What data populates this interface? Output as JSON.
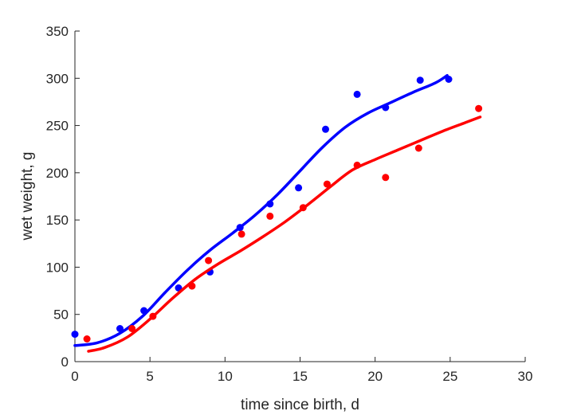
{
  "chart_data": {
    "type": "scatter",
    "title": "",
    "xlabel": "time since birth, d",
    "ylabel": "wet weight, g",
    "xlim": [
      0,
      30
    ],
    "ylim": [
      0,
      350
    ],
    "xticks": [
      0,
      5,
      10,
      15,
      20,
      25,
      30
    ],
    "yticks": [
      0,
      50,
      100,
      150,
      200,
      250,
      300,
      350
    ],
    "grid": false,
    "legend": "none",
    "series": [
      {
        "color": "#0000ff",
        "points": [
          [
            0.0,
            29
          ],
          [
            3.0,
            35
          ],
          [
            4.6,
            54
          ],
          [
            6.9,
            78
          ],
          [
            9.0,
            95
          ],
          [
            11.0,
            142
          ],
          [
            13.0,
            167
          ],
          [
            14.9,
            184
          ],
          [
            16.7,
            246
          ],
          [
            18.8,
            283
          ],
          [
            20.7,
            269
          ],
          [
            23.0,
            298
          ],
          [
            24.9,
            299
          ]
        ],
        "fit": [
          [
            0.0,
            17
          ],
          [
            1.5,
            20
          ],
          [
            3.0,
            30
          ],
          [
            4.5,
            48
          ],
          [
            6.0,
            73
          ],
          [
            7.5,
            97
          ],
          [
            9.0,
            118
          ],
          [
            10.5,
            136
          ],
          [
            12.0,
            155
          ],
          [
            13.5,
            177
          ],
          [
            15.0,
            202
          ],
          [
            16.5,
            227
          ],
          [
            18.0,
            248
          ],
          [
            19.5,
            263
          ],
          [
            21.0,
            274
          ],
          [
            22.5,
            285
          ],
          [
            24.0,
            295
          ],
          [
            24.8,
            303
          ]
        ]
      },
      {
        "color": "#ff0000",
        "points": [
          [
            0.8,
            24
          ],
          [
            3.8,
            35
          ],
          [
            5.2,
            48
          ],
          [
            7.8,
            80
          ],
          [
            8.9,
            107
          ],
          [
            11.1,
            135
          ],
          [
            13.0,
            154
          ],
          [
            15.2,
            163
          ],
          [
            16.8,
            188
          ],
          [
            18.8,
            208
          ],
          [
            20.7,
            195
          ],
          [
            22.9,
            226
          ],
          [
            26.9,
            268
          ]
        ],
        "fit": [
          [
            0.9,
            11
          ],
          [
            2.0,
            15
          ],
          [
            3.5,
            26
          ],
          [
            5.0,
            45
          ],
          [
            6.5,
            67
          ],
          [
            8.0,
            87
          ],
          [
            9.5,
            103
          ],
          [
            11.0,
            117
          ],
          [
            12.5,
            132
          ],
          [
            14.0,
            148
          ],
          [
            15.5,
            166
          ],
          [
            17.0,
            185
          ],
          [
            18.5,
            203
          ],
          [
            20.0,
            214
          ],
          [
            21.5,
            224
          ],
          [
            23.0,
            234
          ],
          [
            24.5,
            244
          ],
          [
            26.0,
            253
          ],
          [
            27.0,
            259
          ]
        ]
      }
    ]
  }
}
